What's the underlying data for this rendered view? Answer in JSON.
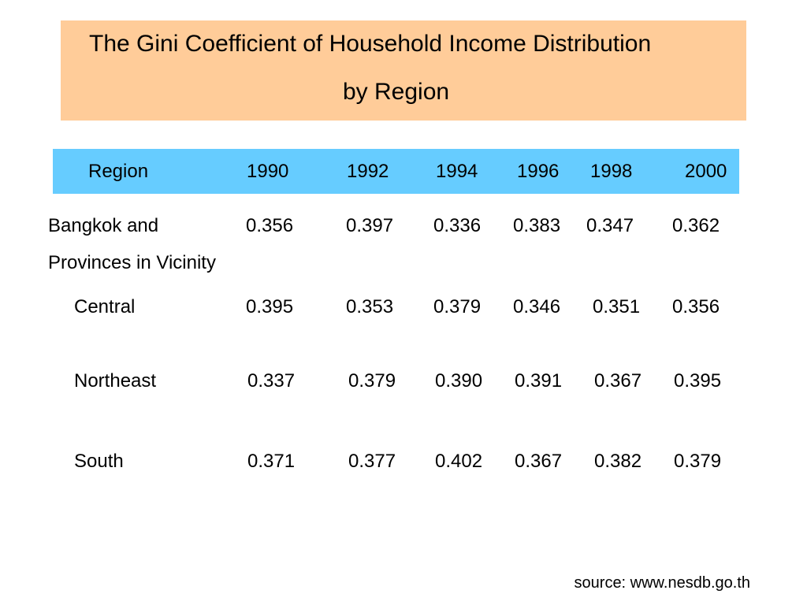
{
  "title": {
    "line1": "The Gini Coefficient of Household Income Distribution",
    "line2": "by Region"
  },
  "header": {
    "region_label": "Region",
    "years": [
      "1990",
      "1992",
      "1994",
      "1996",
      "1998",
      "2000"
    ]
  },
  "rows": [
    {
      "region": "Bangkok and",
      "region_line2": "Provinces in Vicinity",
      "values": [
        "0.356",
        "0.397",
        "0.336",
        "0.383",
        "0.347",
        "0.362"
      ]
    },
    {
      "region": "Central",
      "values": [
        "0.395",
        "0.353",
        "0.379",
        "0.346",
        "0.351",
        "0.356"
      ]
    },
    {
      "region": "Northeast",
      "values": [
        "0.337",
        "0.379",
        "0.390",
        "0.391",
        "0.367",
        "0.395"
      ]
    },
    {
      "region": "South",
      "values": [
        "0.371",
        "0.377",
        "0.402",
        "0.367",
        "0.382",
        "0.379"
      ]
    }
  ],
  "source": "source: www.nesdb.go.th",
  "colors": {
    "title_bg": "#ffcc99",
    "header_bg": "#66ccff"
  }
}
